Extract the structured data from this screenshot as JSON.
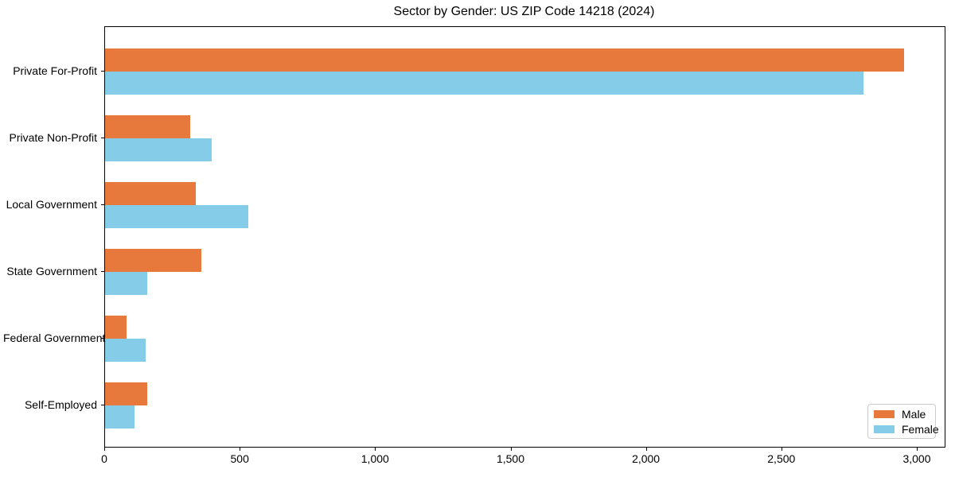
{
  "chart_data": {
    "type": "bar",
    "orientation": "horizontal",
    "title": "Sector by Gender: US ZIP Code 14218 (2024)",
    "xlabel": "",
    "ylabel": "",
    "categories": [
      "Private For-Profit",
      "Private Non-Profit",
      "Local Government",
      "State Government",
      "Federal Government",
      "Self-Employed"
    ],
    "series": [
      {
        "name": "Male",
        "color": "#e8793d",
        "values": [
          2950,
          315,
          335,
          355,
          80,
          155
        ]
      },
      {
        "name": "Female",
        "color": "#85cce8",
        "values": [
          2800,
          395,
          530,
          155,
          150,
          110
        ]
      }
    ],
    "xlim": [
      0,
      3100
    ],
    "x_ticks": [
      {
        "value": 0,
        "label": "0"
      },
      {
        "value": 500,
        "label": "500"
      },
      {
        "value": 1000,
        "label": "1,000"
      },
      {
        "value": 1500,
        "label": "1,500"
      },
      {
        "value": 2000,
        "label": "2,000"
      },
      {
        "value": 2500,
        "label": "2,500"
      },
      {
        "value": 3000,
        "label": "3,000"
      }
    ],
    "grid": false,
    "legend_position": "lower right",
    "plot_border_color": "#000000"
  }
}
